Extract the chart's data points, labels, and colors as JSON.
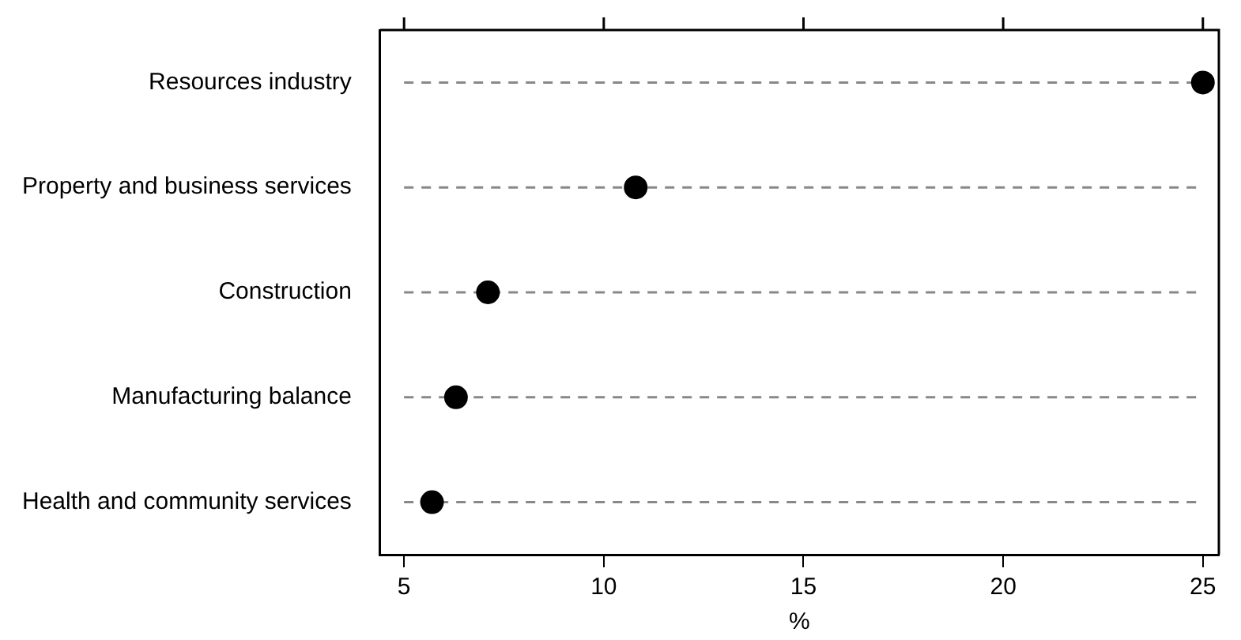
{
  "chart_data": {
    "type": "scatter",
    "orientation": "horizontal",
    "xlabel": "%",
    "categories": [
      "Resources industry",
      "Property and business services",
      "Construction",
      "Manufacturing balance",
      "Health and community services"
    ],
    "values": [
      25.0,
      10.8,
      7.1,
      6.3,
      5.7
    ],
    "color": "#000000",
    "xlim": [
      4.4,
      25.4
    ],
    "xticks": [
      5,
      10,
      15,
      20,
      25
    ],
    "grid": "y",
    "marker": "circle",
    "legend": false
  }
}
